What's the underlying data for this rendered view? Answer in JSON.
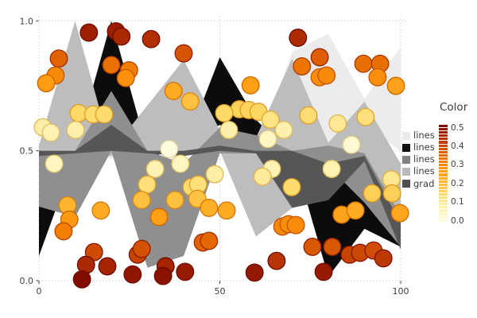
{
  "style": {
    "background": "#ffffff",
    "grid_color": "#ccccdd",
    "tick_label_color": "#3f3f3f",
    "tick_mark_color": "#333333",
    "legend_text_color": "#3c3c3c"
  },
  "legend": {
    "title": "Color",
    "entries": [
      {
        "label": "lines",
        "color": "#ebebeb"
      },
      {
        "label": "lines",
        "color": "#111111"
      },
      {
        "label": "lines",
        "color": "#828282"
      },
      {
        "label": "lines",
        "color": "#b9b9b9"
      },
      {
        "label": "grad",
        "color": "#4f4f4f"
      }
    ],
    "colorbar": {
      "min": 0.0,
      "max": 0.5,
      "tick_labels": [
        "0.5",
        "0.4",
        "0.3",
        "0.2",
        "0.1",
        "0.0"
      ],
      "tick_values": [
        0.5,
        0.4,
        0.3,
        0.2,
        0.1,
        0.0
      ],
      "segments": 30
    }
  },
  "chart_data": {
    "type": "mixed",
    "subtypes": [
      "area-ribbons",
      "scatter"
    ],
    "title": "",
    "xlabel": "",
    "ylabel": "",
    "x_ticks": {
      "values": [
        0,
        50,
        100
      ],
      "labels": [
        "0",
        "50",
        "100"
      ]
    },
    "y_ticks": {
      "values": [
        0,
        0.5,
        1
      ],
      "labels": [
        "0.0",
        "0.5",
        "1.0"
      ]
    },
    "xlim": [
      0,
      100
    ],
    "ylim": [
      0,
      1
    ],
    "grid": "dotted",
    "ribbons": [
      {
        "name": "lines-whitesmoke",
        "color": "#ececec",
        "x": [
          0,
          10,
          20,
          30,
          40,
          50,
          60,
          70,
          80,
          90,
          100
        ],
        "upper": [
          0.51,
          0.52,
          0.5,
          0.49,
          0.51,
          0.5,
          0.5,
          0.88,
          0.95,
          0.7,
          0.9
        ],
        "lower": [
          0.49,
          0.5,
          0.47,
          0.47,
          0.49,
          0.49,
          0.48,
          0.52,
          0.52,
          0.6,
          0.5
        ]
      },
      {
        "name": "lines-black",
        "color": "#0c0c0c",
        "x": [
          0,
          10,
          20,
          30,
          40,
          50,
          60,
          70,
          80,
          90,
          100
        ],
        "upper": [
          0.285,
          0.5,
          1.0,
          0.5,
          0.5,
          0.86,
          0.62,
          0.48,
          0.46,
          0.37,
          0.28
        ],
        "lower": [
          0.095,
          0.48,
          0.5,
          0.47,
          0.52,
          0.6,
          0.5,
          0.5,
          0.015,
          0.2,
          0.13
        ]
      },
      {
        "name": "lines-silver",
        "color": "#bdbdbd",
        "x": [
          0,
          10,
          20,
          30,
          40,
          50,
          60,
          70,
          80,
          90,
          100
        ],
        "upper": [
          0.52,
          1.0,
          0.5,
          0.675,
          0.85,
          0.58,
          0.55,
          0.855,
          0.53,
          0.69,
          0.45
        ],
        "lower": [
          0.49,
          0.5,
          0.48,
          0.5,
          0.5,
          0.5,
          0.17,
          0.28,
          0.5,
          0.49,
          0.21
        ]
      },
      {
        "name": "lines-gray",
        "color": "#8f8f8f",
        "x": [
          0,
          10,
          20,
          30,
          40,
          50,
          60,
          70,
          80,
          90,
          100
        ],
        "upper": [
          0.5,
          0.5,
          0.73,
          0.5,
          0.45,
          0.59,
          0.56,
          0.5,
          0.52,
          0.49,
          0.25
        ],
        "lower": [
          0.285,
          0.245,
          0.5,
          0.05,
          0.095,
          0.49,
          0.49,
          0.5,
          0.44,
          0.3,
          0.13
        ]
      },
      {
        "name": "grad-dimgray",
        "color": "#565656",
        "x": [
          0,
          10,
          20,
          30,
          40,
          50,
          60,
          70,
          80,
          90,
          100
        ],
        "upper": [
          0.5,
          0.5,
          0.6,
          0.5,
          0.5,
          0.52,
          0.5,
          0.5,
          0.45,
          0.48,
          0.22
        ],
        "lower": [
          0.48,
          0.49,
          0.5,
          0.49,
          0.48,
          0.5,
          0.49,
          0.28,
          0.31,
          0.46,
          0.12
        ]
      }
    ],
    "scatter": {
      "color_rule": "color value c = |y - 0.5|, mapped on colorbar range 0.0-0.5",
      "marker_radius_px": 10.8,
      "colormap_stops": [
        [
          0.0,
          "#FFFCE2"
        ],
        [
          0.18,
          "#FFEFA6"
        ],
        [
          0.3,
          "#FFD863"
        ],
        [
          0.42,
          "#FFB52F"
        ],
        [
          0.52,
          "#FF9C13"
        ],
        [
          0.62,
          "#F27E02"
        ],
        [
          0.72,
          "#DE5F03"
        ],
        [
          0.82,
          "#C03C02"
        ],
        [
          0.9,
          "#A22201"
        ],
        [
          1.0,
          "#7D0B00"
        ]
      ],
      "points": [
        [
          13.8,
          0.955
        ],
        [
          21.3,
          0.96
        ],
        [
          22.8,
          0.94
        ],
        [
          31,
          0.93
        ],
        [
          40,
          0.875
        ],
        [
          71.6,
          0.935
        ],
        [
          5.5,
          0.855
        ],
        [
          20,
          0.83
        ],
        [
          24.9,
          0.81
        ],
        [
          24,
          0.78
        ],
        [
          77.6,
          0.86
        ],
        [
          72.7,
          0.825
        ],
        [
          77.6,
          0.783
        ],
        [
          79.5,
          0.79
        ],
        [
          89.7,
          0.835
        ],
        [
          94.3,
          0.835
        ],
        [
          93.6,
          0.783
        ],
        [
          4.6,
          0.79
        ],
        [
          2,
          0.76
        ],
        [
          37.2,
          0.73
        ],
        [
          41.8,
          0.69
        ],
        [
          58.5,
          0.752
        ],
        [
          98.7,
          0.75
        ],
        [
          11,
          0.645
        ],
        [
          15,
          0.64
        ],
        [
          18,
          0.64
        ],
        [
          55.4,
          0.66
        ],
        [
          58,
          0.657
        ],
        [
          60.7,
          0.65
        ],
        [
          64,
          0.62
        ],
        [
          74.5,
          0.636
        ],
        [
          82.6,
          0.605
        ],
        [
          90.3,
          0.63
        ],
        [
          1.1,
          0.59
        ],
        [
          3.3,
          0.57
        ],
        [
          10.1,
          0.58
        ],
        [
          51.2,
          0.645
        ],
        [
          52.5,
          0.58
        ],
        [
          67.7,
          0.58
        ],
        [
          63.3,
          0.545
        ],
        [
          86.4,
          0.523
        ],
        [
          36,
          0.507
        ],
        [
          4.2,
          0.45
        ],
        [
          39.1,
          0.45
        ],
        [
          32.1,
          0.43
        ],
        [
          64.4,
          0.43
        ],
        [
          80.9,
          0.43
        ],
        [
          48.6,
          0.41
        ],
        [
          61.8,
          0.4
        ],
        [
          97.4,
          0.39
        ],
        [
          29.9,
          0.37
        ],
        [
          42.2,
          0.36
        ],
        [
          44,
          0.37
        ],
        [
          69.9,
          0.36
        ],
        [
          97.6,
          0.336
        ],
        [
          92.1,
          0.336
        ],
        [
          28.4,
          0.31
        ],
        [
          43.8,
          0.315
        ],
        [
          37.6,
          0.31
        ],
        [
          7.9,
          0.29
        ],
        [
          8.4,
          0.235
        ],
        [
          17.1,
          0.27
        ],
        [
          33.2,
          0.245
        ],
        [
          47,
          0.28
        ],
        [
          51.9,
          0.27
        ],
        [
          99.8,
          0.26
        ],
        [
          83.7,
          0.254
        ],
        [
          87.5,
          0.27
        ],
        [
          67.3,
          0.208
        ],
        [
          69,
          0.217
        ],
        [
          71,
          0.214
        ],
        [
          6.8,
          0.19
        ],
        [
          45.3,
          0.147
        ],
        [
          47,
          0.153
        ],
        [
          15.2,
          0.11
        ],
        [
          27.3,
          0.1
        ],
        [
          28.4,
          0.122
        ],
        [
          75.6,
          0.13
        ],
        [
          81.1,
          0.13
        ],
        [
          85.9,
          0.1
        ],
        [
          88.8,
          0.107
        ],
        [
          92.5,
          0.116
        ],
        [
          95.2,
          0.086
        ],
        [
          65.7,
          0.076
        ],
        [
          18.9,
          0.055
        ],
        [
          13,
          0.061
        ],
        [
          35,
          0.055
        ],
        [
          11.9,
          0.005
        ],
        [
          25.9,
          0.024
        ],
        [
          34.3,
          0.018
        ],
        [
          40.4,
          0.034
        ],
        [
          59.6,
          0.031
        ],
        [
          78.7,
          0.034
        ]
      ]
    }
  }
}
